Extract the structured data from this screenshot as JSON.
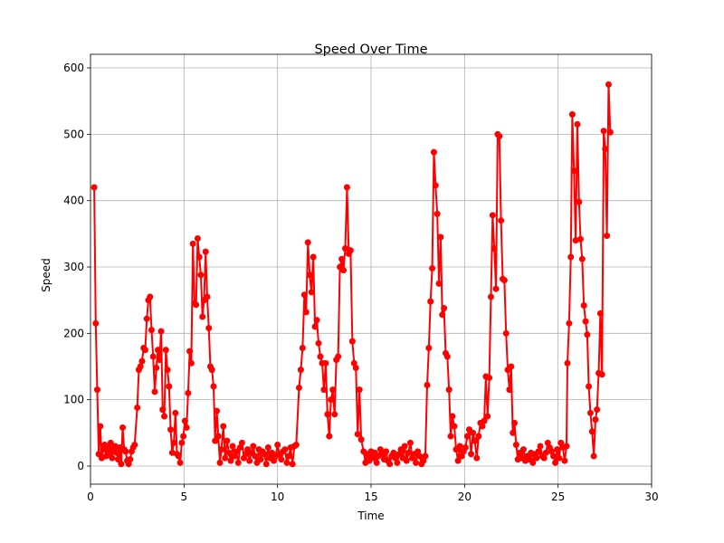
{
  "chart_data": {
    "type": "line",
    "title": "Speed Over Time",
    "x_label": "Time",
    "y_label": "Speed",
    "xlim": [
      0,
      30
    ],
    "ylim": [
      -27.3,
      620.5
    ],
    "xticks": [
      0,
      5,
      10,
      15,
      20,
      25,
      30
    ],
    "yticks": [
      0,
      100,
      200,
      300,
      400,
      500,
      600
    ],
    "grid": true,
    "series": [
      {
        "color": "#ff0000",
        "x": [
          0.2,
          0.28,
          0.36,
          0.44,
          0.52,
          0.6,
          0.68,
          0.76,
          0.84,
          0.92,
          1.0,
          1.08,
          1.16,
          1.24,
          1.32,
          1.4,
          1.48,
          1.56,
          1.64,
          1.72,
          1.8,
          1.88,
          1.96,
          2.04,
          2.12,
          2.2,
          2.28,
          2.36,
          2.5,
          2.585,
          2.67,
          2.755,
          2.84,
          2.925,
          3.01,
          3.095,
          3.18,
          3.265,
          3.35,
          3.435,
          3.52,
          3.605,
          3.69,
          3.775,
          3.86,
          3.945,
          4.03,
          4.115,
          4.2,
          4.285,
          4.37,
          4.455,
          4.54,
          4.625,
          4.71,
          4.795,
          4.88,
          4.965,
          5.05,
          5.135,
          5.22,
          5.305,
          5.39,
          5.475,
          5.56,
          5.645,
          5.73,
          5.815,
          5.9,
          5.985,
          6.07,
          6.155,
          6.24,
          6.325,
          6.41,
          6.495,
          6.58,
          6.665,
          6.75,
          6.835,
          6.92,
          7.0,
          7.1,
          7.2,
          7.3,
          7.4,
          7.5,
          7.6,
          7.7,
          7.8,
          7.9,
          8.0,
          8.1,
          8.2,
          8.3,
          8.4,
          8.5,
          8.6,
          8.7,
          8.8,
          8.9,
          9.0,
          9.1,
          9.2,
          9.3,
          9.4,
          9.5,
          9.6,
          9.7,
          9.8,
          9.9,
          10.0,
          10.1,
          10.2,
          10.3,
          10.4,
          10.5,
          10.6,
          10.7,
          10.8,
          10.9,
          11.0,
          11.15,
          11.245,
          11.34,
          11.435,
          11.53,
          11.625,
          11.72,
          11.815,
          11.91,
          12.005,
          12.1,
          12.195,
          12.29,
          12.385,
          12.48,
          12.575,
          12.67,
          12.765,
          12.86,
          12.955,
          13.05,
          13.145,
          13.24,
          13.335,
          13.43,
          13.525,
          13.62,
          13.715,
          13.81,
          13.905,
          14.0,
          14.095,
          14.19,
          14.285,
          14.38,
          14.475,
          14.6,
          14.7,
          14.8,
          14.9,
          15.0,
          15.1,
          15.2,
          15.3,
          15.4,
          15.5,
          15.6,
          15.7,
          15.8,
          15.9,
          16.0,
          16.1,
          16.2,
          16.3,
          16.4,
          16.5,
          16.6,
          16.7,
          16.8,
          16.9,
          17.0,
          17.1,
          17.2,
          17.3,
          17.4,
          17.5,
          17.6,
          17.7,
          17.8,
          17.9,
          18.0,
          18.09,
          18.18,
          18.27,
          18.36,
          18.45,
          18.54,
          18.63,
          18.72,
          18.81,
          18.9,
          18.99,
          19.08,
          19.17,
          19.26,
          19.35,
          19.45,
          19.55,
          19.65,
          19.75,
          19.85,
          19.95,
          20.05,
          20.15,
          20.25,
          20.35,
          20.45,
          20.55,
          20.65,
          20.75,
          20.85,
          20.95,
          21.05,
          21.14,
          21.23,
          21.32,
          21.41,
          21.5,
          21.59,
          21.68,
          21.77,
          21.86,
          21.95,
          22.04,
          22.13,
          22.22,
          22.31,
          22.4,
          22.49,
          22.58,
          22.67,
          22.76,
          22.85,
          22.95,
          23.05,
          23.15,
          23.25,
          23.35,
          23.45,
          23.55,
          23.65,
          23.75,
          23.85,
          23.95,
          24.05,
          24.15,
          24.25,
          24.35,
          24.45,
          24.55,
          24.65,
          24.75,
          24.85,
          24.95,
          25.05,
          25.15,
          25.25,
          25.35,
          25.45,
          25.5,
          25.59,
          25.68,
          25.76,
          25.85,
          25.94,
          26.03,
          26.12,
          26.2,
          26.29,
          26.38,
          26.47,
          26.56,
          26.64,
          26.73,
          26.82,
          26.91,
          27.0,
          27.08,
          27.17,
          27.26,
          27.35,
          27.44,
          27.52,
          27.61,
          27.7,
          27.79
        ],
        "values": [
          420,
          215,
          115,
          18,
          60,
          12,
          25,
          32,
          15,
          28,
          18,
          35,
          12,
          25,
          30,
          20,
          10,
          28,
          3,
          58,
          25,
          22,
          8,
          3,
          10,
          22,
          28,
          32,
          88,
          145,
          150,
          158,
          178,
          175,
          222,
          250,
          255,
          205,
          165,
          112,
          148,
          175,
          160,
          203,
          85,
          75,
          175,
          145,
          120,
          55,
          20,
          35,
          80,
          18,
          15,
          5,
          35,
          45,
          68,
          58,
          110,
          173,
          155,
          335,
          245,
          243,
          343,
          315,
          288,
          225,
          250,
          323,
          255,
          208,
          150,
          145,
          120,
          38,
          83,
          45,
          5,
          25,
          60,
          12,
          38,
          20,
          8,
          30,
          15,
          22,
          5,
          28,
          35,
          12,
          18,
          25,
          8,
          20,
          30,
          15,
          5,
          25,
          10,
          22,
          18,
          3,
          28,
          12,
          20,
          8,
          15,
          32,
          18,
          10,
          22,
          25,
          5,
          15,
          28,
          3,
          30,
          32,
          118,
          145,
          178,
          258,
          232,
          337,
          288,
          262,
          315,
          210,
          220,
          185,
          165,
          155,
          115,
          155,
          78,
          45,
          100,
          115,
          78,
          160,
          165,
          300,
          312,
          295,
          328,
          420,
          320,
          325,
          188,
          155,
          148,
          48,
          115,
          40,
          22,
          5,
          18,
          8,
          22,
          12,
          20,
          5,
          15,
          25,
          18,
          10,
          22,
          8,
          3,
          15,
          20,
          12,
          5,
          18,
          25,
          12,
          30,
          8,
          20,
          35,
          12,
          18,
          5,
          22,
          15,
          3,
          8,
          15,
          122,
          178,
          248,
          298,
          473,
          423,
          380,
          275,
          345,
          228,
          238,
          170,
          165,
          115,
          45,
          75,
          60,
          25,
          8,
          30,
          15,
          22,
          28,
          45,
          55,
          18,
          50,
          38,
          12,
          45,
          65,
          60,
          68,
          135,
          75,
          133,
          255,
          378,
          328,
          267,
          500,
          497,
          370,
          282,
          280,
          200,
          145,
          115,
          150,
          50,
          65,
          32,
          10,
          20,
          12,
          25,
          8,
          15,
          10,
          20,
          5,
          18,
          12,
          22,
          30,
          15,
          12,
          20,
          35,
          28,
          22,
          15,
          5,
          25,
          12,
          35,
          28,
          8,
          30,
          155,
          215,
          315,
          530,
          445,
          340,
          515,
          398,
          342,
          312,
          242,
          218,
          198,
          120,
          80,
          52,
          15,
          70,
          85,
          140,
          230,
          138,
          505,
          478,
          347,
          575,
          503
        ]
      }
    ]
  }
}
